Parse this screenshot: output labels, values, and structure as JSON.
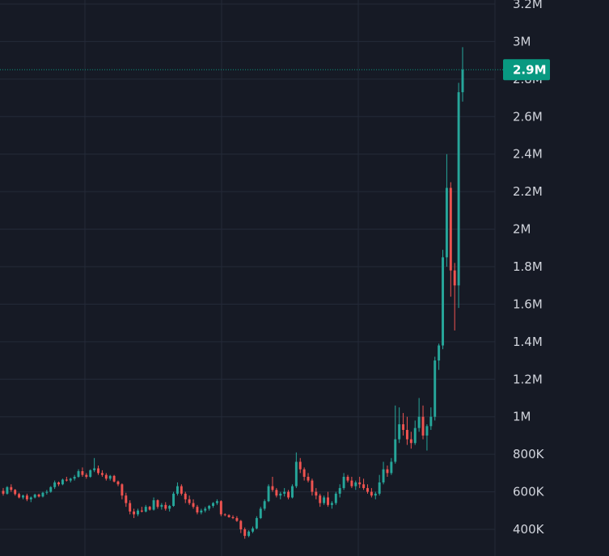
{
  "colors": {
    "background": "#161a25",
    "grid": "#242a38",
    "up": "#26a69a",
    "down": "#ef5350",
    "text": "#d1d4dc",
    "last_price": "#089981"
  },
  "last_price": {
    "label": "2.9M",
    "value": 2850000
  },
  "chart_data": {
    "type": "candlestick",
    "title": "",
    "xlabel": "",
    "ylabel": "",
    "ylim": [
      340000,
      3230000
    ],
    "y_scale": "linear",
    "grid": true,
    "y_ticks": [
      {
        "value": 400000,
        "label": "400K"
      },
      {
        "value": 600000,
        "label": "600K"
      },
      {
        "value": 800000,
        "label": "800K"
      },
      {
        "value": 1000000,
        "label": "1M"
      },
      {
        "value": 1200000,
        "label": "1.2M"
      },
      {
        "value": 1400000,
        "label": "1.4M"
      },
      {
        "value": 1600000,
        "label": "1.6M"
      },
      {
        "value": 1800000,
        "label": "1.8M"
      },
      {
        "value": 2000000,
        "label": "2M"
      },
      {
        "value": 2200000,
        "label": "2.2M"
      },
      {
        "value": 2400000,
        "label": "2.4M"
      },
      {
        "value": 2600000,
        "label": "2.6M"
      },
      {
        "value": 2800000,
        "label": "2.8M"
      },
      {
        "value": 3000000,
        "label": "3M"
      },
      {
        "value": 3200000,
        "label": "3.2M"
      }
    ],
    "candles": [
      [
        605000,
        620000,
        580000,
        590000
      ],
      [
        590000,
        630000,
        585000,
        625000
      ],
      [
        625000,
        640000,
        600000,
        610000
      ],
      [
        610000,
        615000,
        580000,
        588000
      ],
      [
        588000,
        595000,
        565000,
        570000
      ],
      [
        570000,
        585000,
        560000,
        580000
      ],
      [
        580000,
        590000,
        550000,
        560000
      ],
      [
        560000,
        575000,
        545000,
        570000
      ],
      [
        570000,
        590000,
        565000,
        585000
      ],
      [
        585000,
        590000,
        570000,
        575000
      ],
      [
        575000,
        600000,
        570000,
        595000
      ],
      [
        595000,
        610000,
        585000,
        600000
      ],
      [
        600000,
        630000,
        595000,
        625000
      ],
      [
        625000,
        660000,
        615000,
        650000
      ],
      [
        650000,
        655000,
        630000,
        640000
      ],
      [
        640000,
        670000,
        635000,
        665000
      ],
      [
        665000,
        680000,
        655000,
        660000
      ],
      [
        660000,
        675000,
        650000,
        670000
      ],
      [
        670000,
        690000,
        660000,
        680000
      ],
      [
        680000,
        720000,
        675000,
        710000
      ],
      [
        710000,
        730000,
        680000,
        690000
      ],
      [
        690000,
        700000,
        670000,
        680000
      ],
      [
        680000,
        720000,
        675000,
        715000
      ],
      [
        715000,
        780000,
        705000,
        725000
      ],
      [
        725000,
        740000,
        690000,
        700000
      ],
      [
        700000,
        715000,
        680000,
        690000
      ],
      [
        690000,
        700000,
        660000,
        670000
      ],
      [
        670000,
        690000,
        660000,
        685000
      ],
      [
        685000,
        690000,
        650000,
        655000
      ],
      [
        655000,
        660000,
        630000,
        640000
      ],
      [
        640000,
        645000,
        560000,
        580000
      ],
      [
        580000,
        595000,
        520000,
        540000
      ],
      [
        540000,
        555000,
        480000,
        495000
      ],
      [
        495000,
        510000,
        460000,
        480000
      ],
      [
        480000,
        510000,
        470000,
        500000
      ],
      [
        500000,
        520000,
        490000,
        495000
      ],
      [
        495000,
        530000,
        490000,
        520000
      ],
      [
        520000,
        525000,
        500000,
        505000
      ],
      [
        505000,
        570000,
        500000,
        555000
      ],
      [
        555000,
        560000,
        510000,
        520000
      ],
      [
        520000,
        540000,
        505000,
        530000
      ],
      [
        530000,
        545000,
        500000,
        510000
      ],
      [
        510000,
        530000,
        495000,
        525000
      ],
      [
        525000,
        600000,
        520000,
        590000
      ],
      [
        590000,
        650000,
        580000,
        630000
      ],
      [
        630000,
        640000,
        580000,
        590000
      ],
      [
        590000,
        600000,
        540000,
        560000
      ],
      [
        560000,
        580000,
        530000,
        540000
      ],
      [
        540000,
        560000,
        510000,
        520000
      ],
      [
        520000,
        530000,
        480000,
        490000
      ],
      [
        490000,
        510000,
        480000,
        500000
      ],
      [
        500000,
        520000,
        490000,
        510000
      ],
      [
        510000,
        530000,
        500000,
        525000
      ],
      [
        525000,
        545000,
        515000,
        540000
      ],
      [
        540000,
        560000,
        530000,
        550000
      ],
      [
        550000,
        555000,
        470000,
        480000
      ],
      [
        480000,
        485000,
        470000,
        476000
      ],
      [
        476000,
        480000,
        462000,
        465000
      ],
      [
        465000,
        475000,
        455000,
        460000
      ],
      [
        460000,
        470000,
        440000,
        445000
      ],
      [
        445000,
        450000,
        380000,
        400000
      ],
      [
        400000,
        410000,
        350000,
        365000
      ],
      [
        365000,
        395000,
        358000,
        388000
      ],
      [
        388000,
        415000,
        380000,
        405000
      ],
      [
        405000,
        470000,
        400000,
        460000
      ],
      [
        460000,
        520000,
        455000,
        510000
      ],
      [
        510000,
        560000,
        500000,
        550000
      ],
      [
        550000,
        640000,
        545000,
        630000
      ],
      [
        630000,
        680000,
        600000,
        610000
      ],
      [
        610000,
        620000,
        570000,
        580000
      ],
      [
        580000,
        600000,
        560000,
        590000
      ],
      [
        590000,
        620000,
        575000,
        600000
      ],
      [
        600000,
        610000,
        560000,
        570000
      ],
      [
        570000,
        640000,
        565000,
        630000
      ],
      [
        630000,
        810000,
        620000,
        760000
      ],
      [
        760000,
        780000,
        700000,
        720000
      ],
      [
        720000,
        730000,
        660000,
        680000
      ],
      [
        680000,
        700000,
        650000,
        660000
      ],
      [
        660000,
        670000,
        580000,
        600000
      ],
      [
        600000,
        620000,
        560000,
        580000
      ],
      [
        580000,
        590000,
        520000,
        540000
      ],
      [
        540000,
        580000,
        530000,
        570000
      ],
      [
        570000,
        600000,
        520000,
        530000
      ],
      [
        530000,
        550000,
        510000,
        540000
      ],
      [
        540000,
        600000,
        530000,
        590000
      ],
      [
        590000,
        640000,
        570000,
        620000
      ],
      [
        620000,
        700000,
        610000,
        680000
      ],
      [
        680000,
        690000,
        650000,
        660000
      ],
      [
        660000,
        680000,
        620000,
        630000
      ],
      [
        630000,
        660000,
        610000,
        650000
      ],
      [
        650000,
        680000,
        620000,
        640000
      ],
      [
        640000,
        670000,
        610000,
        620000
      ],
      [
        620000,
        640000,
        590000,
        600000
      ],
      [
        600000,
        620000,
        570000,
        580000
      ],
      [
        580000,
        600000,
        560000,
        590000
      ],
      [
        590000,
        690000,
        580000,
        650000
      ],
      [
        650000,
        760000,
        640000,
        720000
      ],
      [
        720000,
        740000,
        680000,
        700000
      ],
      [
        700000,
        780000,
        690000,
        760000
      ],
      [
        760000,
        1060000,
        750000,
        880000
      ],
      [
        880000,
        1050000,
        860000,
        960000
      ],
      [
        960000,
        1020000,
        900000,
        930000
      ],
      [
        930000,
        1000000,
        850000,
        880000
      ],
      [
        880000,
        920000,
        830000,
        860000
      ],
      [
        860000,
        980000,
        850000,
        940000
      ],
      [
        940000,
        1100000,
        920000,
        1000000
      ],
      [
        1000000,
        1060000,
        880000,
        900000
      ],
      [
        900000,
        960000,
        820000,
        950000
      ],
      [
        950000,
        1050000,
        930000,
        1000000
      ],
      [
        1000000,
        1320000,
        980000,
        1300000
      ],
      [
        1300000,
        1390000,
        1250000,
        1380000
      ],
      [
        1380000,
        1890000,
        1360000,
        1850000
      ],
      [
        1850000,
        2400000,
        1800000,
        2220000
      ],
      [
        2220000,
        2250000,
        1640000,
        1780000
      ],
      [
        1780000,
        1820000,
        1460000,
        1700000
      ],
      [
        1700000,
        2780000,
        1580000,
        2730000
      ],
      [
        2730000,
        2970000,
        2680000,
        2850000
      ]
    ]
  }
}
